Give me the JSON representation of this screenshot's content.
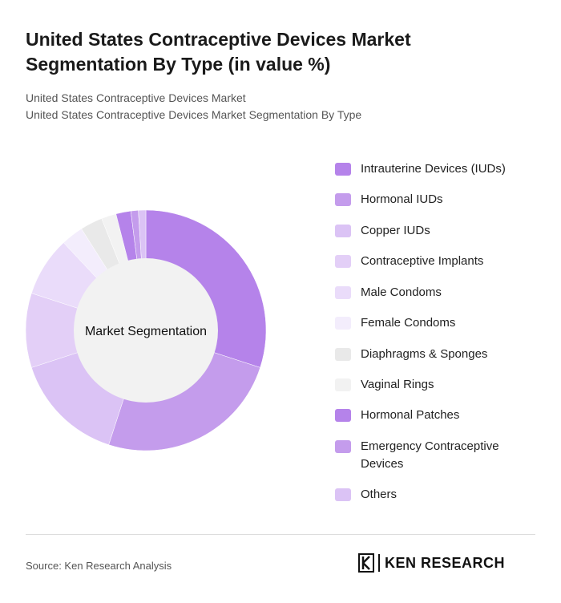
{
  "title": "United States Contraceptive Devices Market Segmentation By Type (in value %)",
  "subtitle1": "United States Contraceptive Devices Market",
  "subtitle2": "United States Contraceptive Devices Market Segmentation By Type",
  "source": "Source: Ken Research Analysis",
  "logo_text": "KEN RESEARCH",
  "chart_data": {
    "type": "pie",
    "donut": true,
    "center_label": "Market Segmentation",
    "legend_position": "right",
    "categories": [
      "Intrauterine Devices (IUDs)",
      "Hormonal IUDs",
      "Copper IUDs",
      "Contraceptive Implants",
      "Male Condoms",
      "Female Condoms",
      "Diaphragms & Sponges",
      "Vaginal Rings",
      "Hormonal Patches",
      "Emergency Contraceptive Devices",
      "Others"
    ],
    "values": [
      30,
      25,
      15,
      10,
      8,
      3,
      3,
      2,
      2,
      1,
      1
    ],
    "colors": [
      "#b583ea",
      "#c49cec",
      "#dbc3f5",
      "#e3cff7",
      "#eadcfa",
      "#f3edfc",
      "#e9e9e9",
      "#f2f2f2",
      "#b583ea",
      "#c49cec",
      "#dbc3f5"
    ]
  }
}
